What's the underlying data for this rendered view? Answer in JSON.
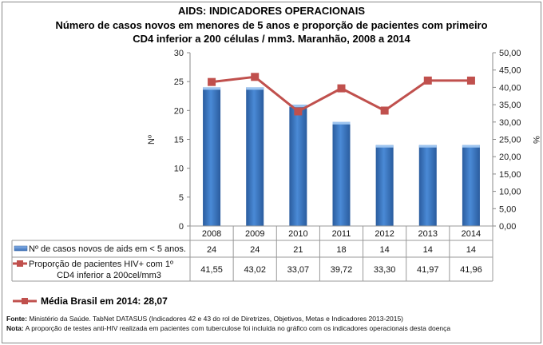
{
  "title": "AIDS: INDICADORES OPERACIONAIS",
  "subtitle1": "Número de casos novos em menores de 5 anos e proporção de pacientes com primeiro",
  "subtitle2": "CD4 inferior a 200 células / mm3. Maranhão, 2008 a 2014",
  "chart_data": {
    "type": "bar+line",
    "categories": [
      "2008",
      "2009",
      "2010",
      "2011",
      "2012",
      "2013",
      "2014"
    ],
    "ylabel": "Nº",
    "y2label": "%",
    "ylim": [
      0,
      30
    ],
    "yticks": [
      "0",
      "5",
      "10",
      "15",
      "20",
      "25",
      "30"
    ],
    "y2lim": [
      0,
      50
    ],
    "y2ticks": [
      "0,00",
      "5,00",
      "10,00",
      "15,00",
      "20,00",
      "25,00",
      "30,00",
      "35,00",
      "40,00",
      "45,00",
      "50,00"
    ],
    "series": [
      {
        "name": "Nº de casos novos de aids em < 5 anos.",
        "type": "bar",
        "axis": "left",
        "color": "#3a78c3",
        "values": [
          24,
          24,
          21,
          18,
          14,
          14,
          14
        ],
        "labels": [
          "24",
          "24",
          "21",
          "18",
          "14",
          "14",
          "14"
        ]
      },
      {
        "name_line1": "Proporção de pacientes HIV+ com 1º",
        "name_line2": "CD4 inferior a 200cel/mm3",
        "type": "line",
        "axis": "right",
        "color": "#c0504d",
        "values": [
          41.55,
          43.02,
          33.07,
          39.72,
          33.3,
          41.97,
          41.96
        ],
        "labels": [
          "41,55",
          "43,02",
          "33,07",
          "39,72",
          "33,30",
          "41,97",
          "41,96"
        ]
      }
    ],
    "grid": false,
    "legend": "data-table"
  },
  "media_label": "Média Brasil em 2014: 28,07",
  "fonte_label": "Fonte:",
  "fonte_text": " Ministério da Saúde. TabNet DATASUS (Indicadores 42 e 43 do rol de Diretrizes, Objetivos, Metas e Indicadores 2013-2015)",
  "nota_label": "Nota:",
  "nota_text": " A proporção de testes anti-HIV realizada em pacientes com tuberculose foi incluída no gráfico com os indicadores operacionais desta doença"
}
